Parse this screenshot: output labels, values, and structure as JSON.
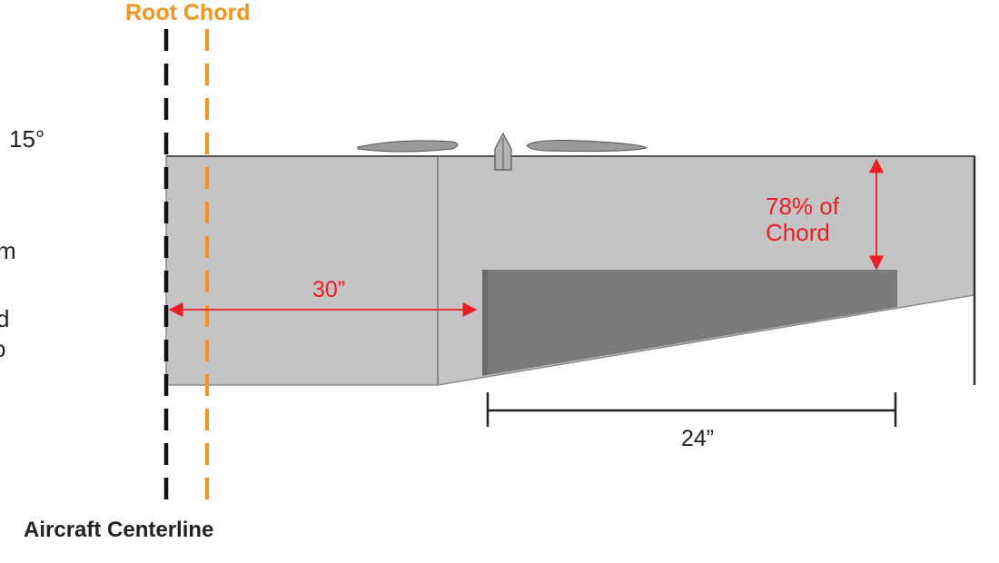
{
  "labels": {
    "root_chord": "Root Chord",
    "aircraft_centerline": "Aircraft Centerline",
    "angle": "15°",
    "clipped_left_1": "m",
    "clipped_left_2": "d",
    "clipped_left_3": "o",
    "dim_30": "30”",
    "dim_78_line1": "78% of",
    "dim_78_line2": "Chord",
    "dim_24": "24”"
  },
  "colors": {
    "root_chord": "#f7941d",
    "centerline": "#111111",
    "dimension_red": "#ee1c24",
    "wing_fill": "#c4c4c4",
    "flap_fill": "#7a7a7a",
    "airfoil_fill": "#9a9a9a",
    "text_dark": "#222222"
  }
}
